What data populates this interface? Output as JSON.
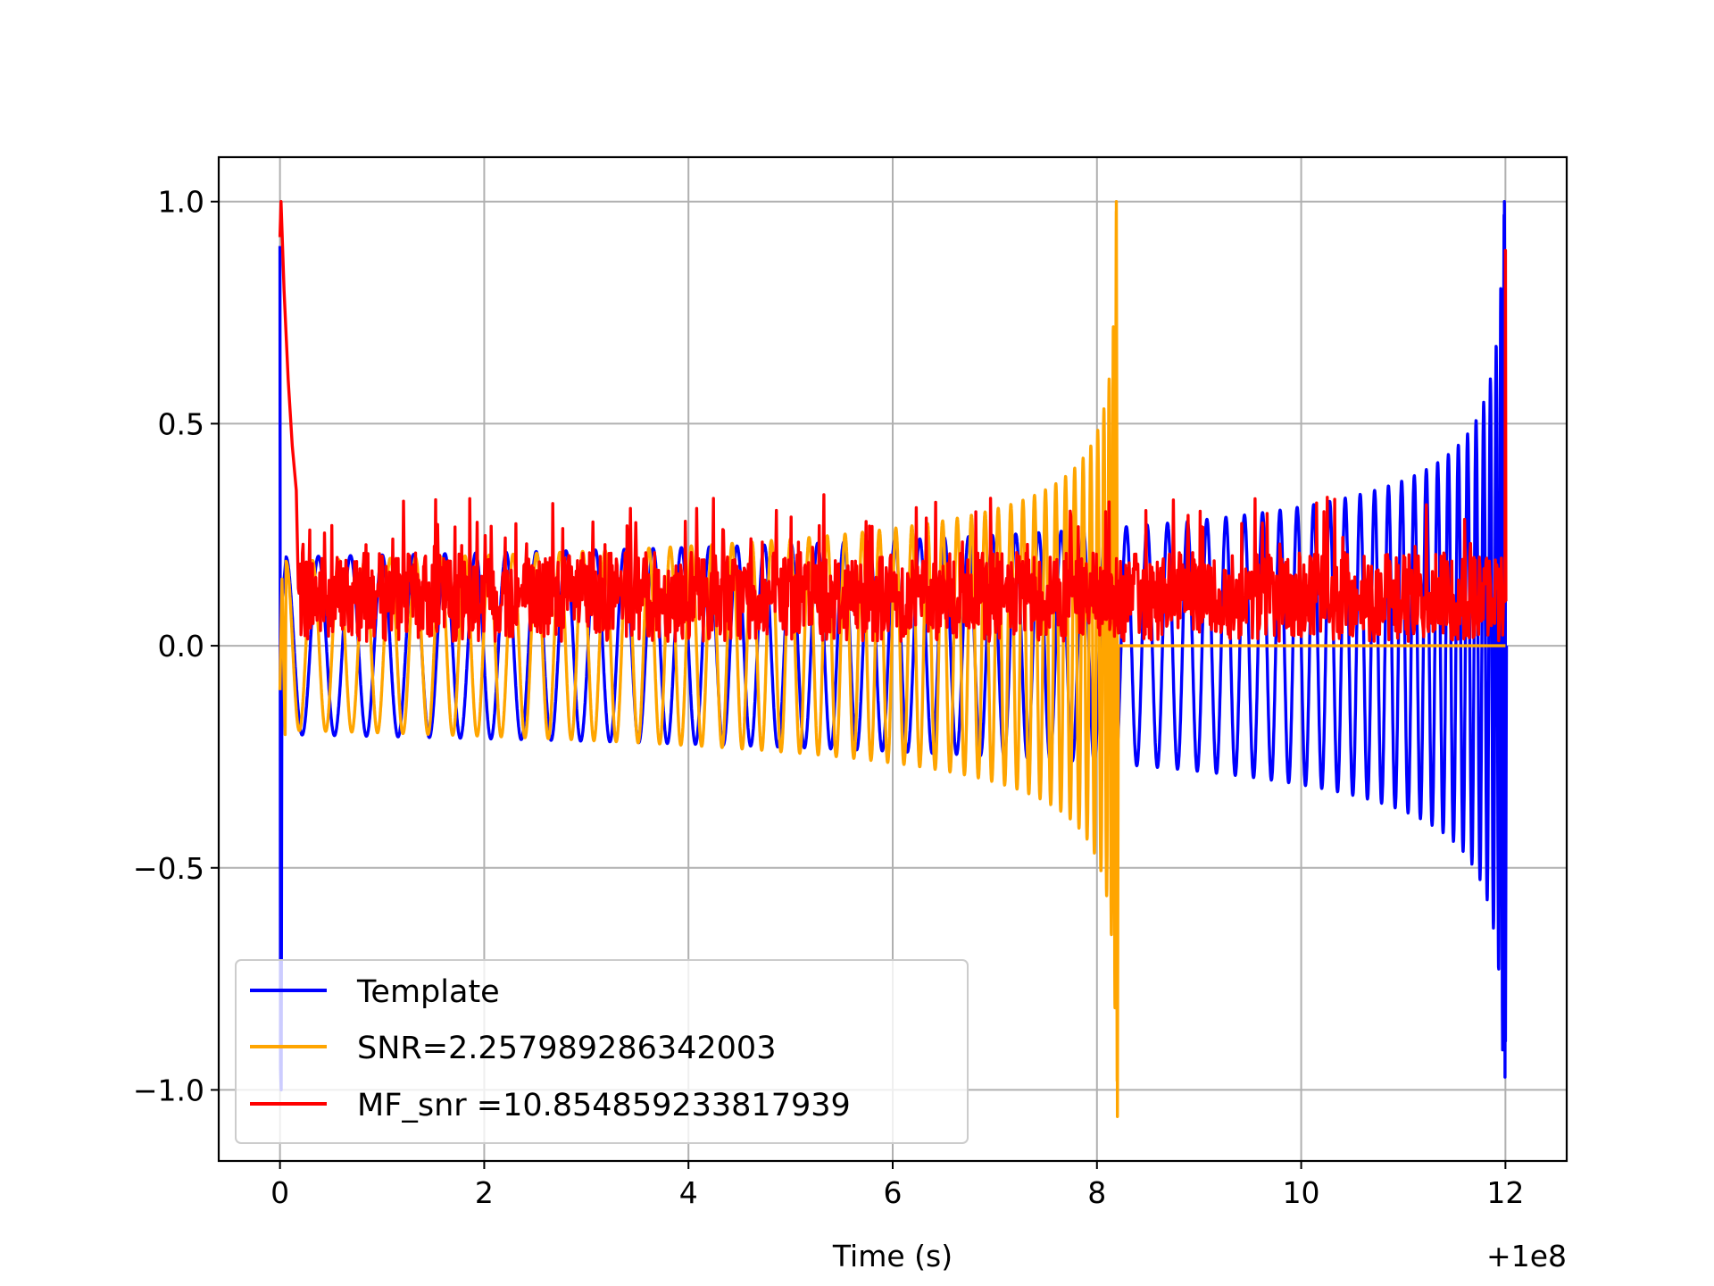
{
  "chart_data": {
    "type": "line",
    "title": "",
    "xlabel": "Time (s)",
    "ylabel": "",
    "x_offset_label": "+1e8",
    "xlim": [
      -0.6,
      12.6
    ],
    "ylim": [
      -1.16,
      1.1
    ],
    "xticks": [
      0,
      2,
      4,
      6,
      8,
      10,
      12
    ],
    "xtick_labels": [
      "0",
      "2",
      "4",
      "6",
      "8",
      "10",
      "12"
    ],
    "yticks": [
      -1.0,
      -0.5,
      0.0,
      0.5,
      1.0
    ],
    "ytick_labels": [
      "−1.0",
      "−0.5",
      "0.0",
      "0.5",
      "1.0"
    ],
    "grid": true,
    "legend_position": "lower-left",
    "series": [
      {
        "name": "Template",
        "color": "#0000ff",
        "description": "chirp waveform: oscillates with growing amplitude from about ±0.2 at t=0.3 to ±0.9 at t=12, merger spike at t=12 (peak 1.0, trough -0.89); initial transient at t=0 from 0.9 to -1.0",
        "x_start": 0.0,
        "x_end": 12.0,
        "peak": 1.0,
        "peak_x": 12.0,
        "trough": -0.89,
        "trough_x": 12.0
      },
      {
        "name": "SNR=2.257989286342003",
        "color": "#ffa500",
        "description": "chirp waveform shifted in time: oscillates with growing amplitude from about ±0.19 at t=0.3 to a merger spike at t=8.2 (peak 1.0, trough -1.06), then flat at 0.0 until t=12",
        "x_start": 0.0,
        "x_end": 12.0,
        "peak": 1.0,
        "peak_x": 8.2,
        "trough": -1.06,
        "trough_x": 8.2
      },
      {
        "name": "MF_snr =10.854859233817939",
        "color": "#ff0000",
        "description": "noisy matched filter output between about 0.0 and 0.3 across the full range, with peaks of 1.0 at t=0 and 0.89 at t=12",
        "x_start": 0.0,
        "x_end": 12.0,
        "peak": 1.0,
        "peak_x": 0.0,
        "secondary_peak": 0.89,
        "secondary_peak_x": 12.0
      }
    ]
  }
}
